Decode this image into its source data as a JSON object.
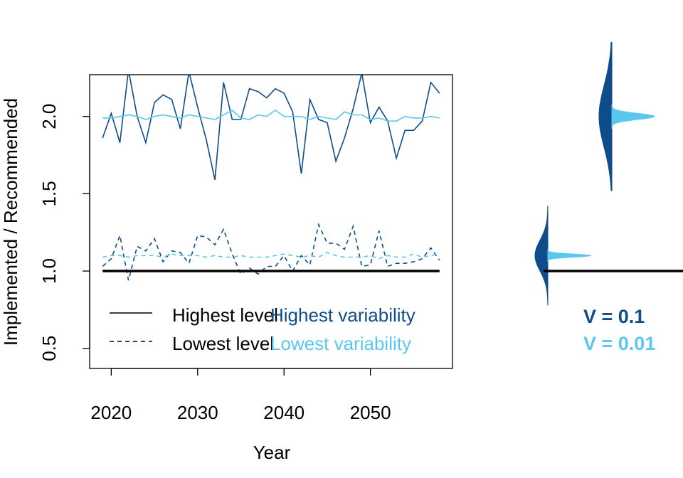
{
  "colors": {
    "dark": "#0E4C8A",
    "light": "#5BC7EE",
    "axis": "#000000"
  },
  "chart_data": {
    "type": "line",
    "xlabel": "Year",
    "ylabel": "Implemented / Recommended",
    "xlim": [
      2017.5,
      2059.5
    ],
    "ylim": [
      0.37,
      2.27
    ],
    "xticks": [
      2020,
      2030,
      2040,
      2050
    ],
    "xtick_labels": [
      "2020",
      "2030",
      "2040",
      "2050"
    ],
    "yticks": [
      0.5,
      1.0,
      1.5,
      2.0
    ],
    "ytick_labels": [
      "0.5",
      "1.0",
      "1.5",
      "2.0"
    ],
    "reference_line": 1.0,
    "x": [
      2019,
      2020,
      2021,
      2022,
      2023,
      2024,
      2025,
      2026,
      2027,
      2028,
      2029,
      2030,
      2031,
      2032,
      2033,
      2034,
      2035,
      2036,
      2037,
      2038,
      2039,
      2040,
      2041,
      2042,
      2043,
      2044,
      2045,
      2046,
      2047,
      2048,
      2049,
      2050,
      2051,
      2052,
      2053,
      2054,
      2055,
      2056,
      2057,
      2058
    ],
    "series": [
      {
        "level": "Highest level",
        "variability": "Highest variability",
        "line": "solid",
        "color": "dark",
        "values": [
          1.86,
          2.02,
          1.83,
          2.3,
          2.0,
          1.83,
          2.09,
          2.14,
          2.11,
          1.92,
          2.29,
          2.06,
          1.85,
          1.59,
          2.22,
          1.98,
          1.98,
          2.18,
          2.16,
          2.12,
          2.18,
          2.15,
          2.03,
          1.63,
          2.11,
          1.98,
          1.96,
          1.71,
          1.86,
          2.05,
          2.28,
          1.96,
          2.06,
          1.97,
          1.73,
          1.91,
          1.91,
          1.97,
          2.22,
          2.15
        ]
      },
      {
        "level": "Highest level",
        "variability": "Lowest variability",
        "line": "solid",
        "color": "light",
        "values": [
          1.99,
          1.99,
          2.0,
          2.01,
          2.0,
          1.98,
          2.0,
          2.01,
          2.0,
          1.99,
          2.01,
          2.0,
          1.99,
          1.98,
          2.01,
          2.04,
          1.99,
          1.98,
          2.01,
          2.0,
          2.04,
          2.0,
          2.0,
          2.0,
          1.98,
          2.0,
          1.99,
          1.98,
          2.03,
          2.01,
          2.01,
          1.98,
          1.99,
          1.97,
          1.97,
          2.0,
          1.99,
          1.99,
          2.0,
          1.99
        ]
      },
      {
        "level": "Lowest level",
        "variability": "Highest variability",
        "line": "dashed",
        "color": "dark",
        "values": [
          1.03,
          1.08,
          1.23,
          0.94,
          1.16,
          1.13,
          1.21,
          1.06,
          1.13,
          1.12,
          1.05,
          1.23,
          1.22,
          1.17,
          1.27,
          1.11,
          0.98,
          1.02,
          0.98,
          1.03,
          1.03,
          1.1,
          1.0,
          1.1,
          1.04,
          1.3,
          1.18,
          1.18,
          1.14,
          1.29,
          1.03,
          1.04,
          1.26,
          1.03,
          1.05,
          1.05,
          1.06,
          1.08,
          1.15,
          1.07
        ]
      },
      {
        "level": "Lowest level",
        "variability": "Lowest variability",
        "line": "dashed",
        "color": "light",
        "values": [
          1.09,
          1.1,
          1.1,
          1.09,
          1.1,
          1.1,
          1.1,
          1.09,
          1.11,
          1.1,
          1.1,
          1.1,
          1.09,
          1.1,
          1.09,
          1.09,
          1.1,
          1.09,
          1.09,
          1.09,
          1.1,
          1.11,
          1.1,
          1.09,
          1.1,
          1.09,
          1.12,
          1.1,
          1.09,
          1.09,
          1.09,
          1.1,
          1.08,
          1.1,
          1.09,
          1.09,
          1.11,
          1.09,
          1.1,
          1.11
        ]
      }
    ],
    "legend_level": [
      "Highest level",
      "Lowest level"
    ],
    "legend_variability": [
      "Highest variability",
      "Lowest variability"
    ],
    "side_panel": {
      "distributions": [
        {
          "center": 1.1,
          "sd_wide": 0.1,
          "sd_narrow": 0.01
        },
        {
          "center": 2.0,
          "sd_wide": 0.2,
          "sd_narrow": 0.02
        }
      ],
      "v_labels": [
        "V = 0.1",
        "V = 0.01"
      ]
    }
  }
}
